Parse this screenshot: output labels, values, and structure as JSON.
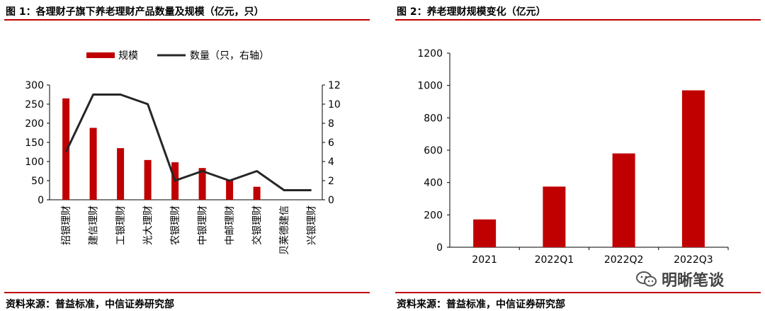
{
  "left_panel": {
    "title": "图 1：各理财子旗下养老理财产品数量及规模（亿元，只）",
    "source": "资料来源：普益标准，中信证券研究部"
  },
  "right_panel": {
    "title": "图 2：养老理财规模变化（亿元）",
    "source": "资料来源：普益标准，中信证券研究部"
  },
  "watermark": {
    "text": "明晰笔谈",
    "icon": "wechat-icon"
  },
  "colors": {
    "bar": "#c00000",
    "line": "#262626",
    "rule": "#c00000"
  },
  "chart_data": [
    {
      "type": "bar",
      "categories": [
        "招银理财",
        "建信理财",
        "工银理财",
        "光大理财",
        "农银理财",
        "中银理财",
        "中邮理财",
        "交银理财",
        "贝莱德建信",
        "兴银理财"
      ],
      "series": [
        {
          "name": "规模",
          "type": "bar",
          "axis": "left",
          "values": [
            265,
            188,
            135,
            104,
            98,
            83,
            52,
            34,
            0,
            0
          ]
        },
        {
          "name": "数量（只，右轴）",
          "type": "line",
          "axis": "right",
          "values": [
            5,
            11,
            11,
            10,
            2,
            3,
            2,
            3,
            1,
            1
          ]
        }
      ],
      "ylim": [
        0,
        300
      ],
      "yticks": [
        "300",
        "250",
        "200",
        "150",
        "100",
        "50",
        "0"
      ],
      "y2lim": [
        0,
        12
      ],
      "y2ticks": [
        "12",
        "10",
        "8",
        "6",
        "4",
        "2",
        "0"
      ],
      "legend_position": "top"
    },
    {
      "type": "bar",
      "categories": [
        "2021",
        "2022Q1",
        "2022Q2",
        "2022Q3"
      ],
      "values": [
        172,
        375,
        580,
        970
      ],
      "ylim": [
        0,
        1200
      ],
      "yticks": [
        "1200",
        "1000",
        "800",
        "600",
        "400",
        "200",
        "0"
      ]
    }
  ]
}
